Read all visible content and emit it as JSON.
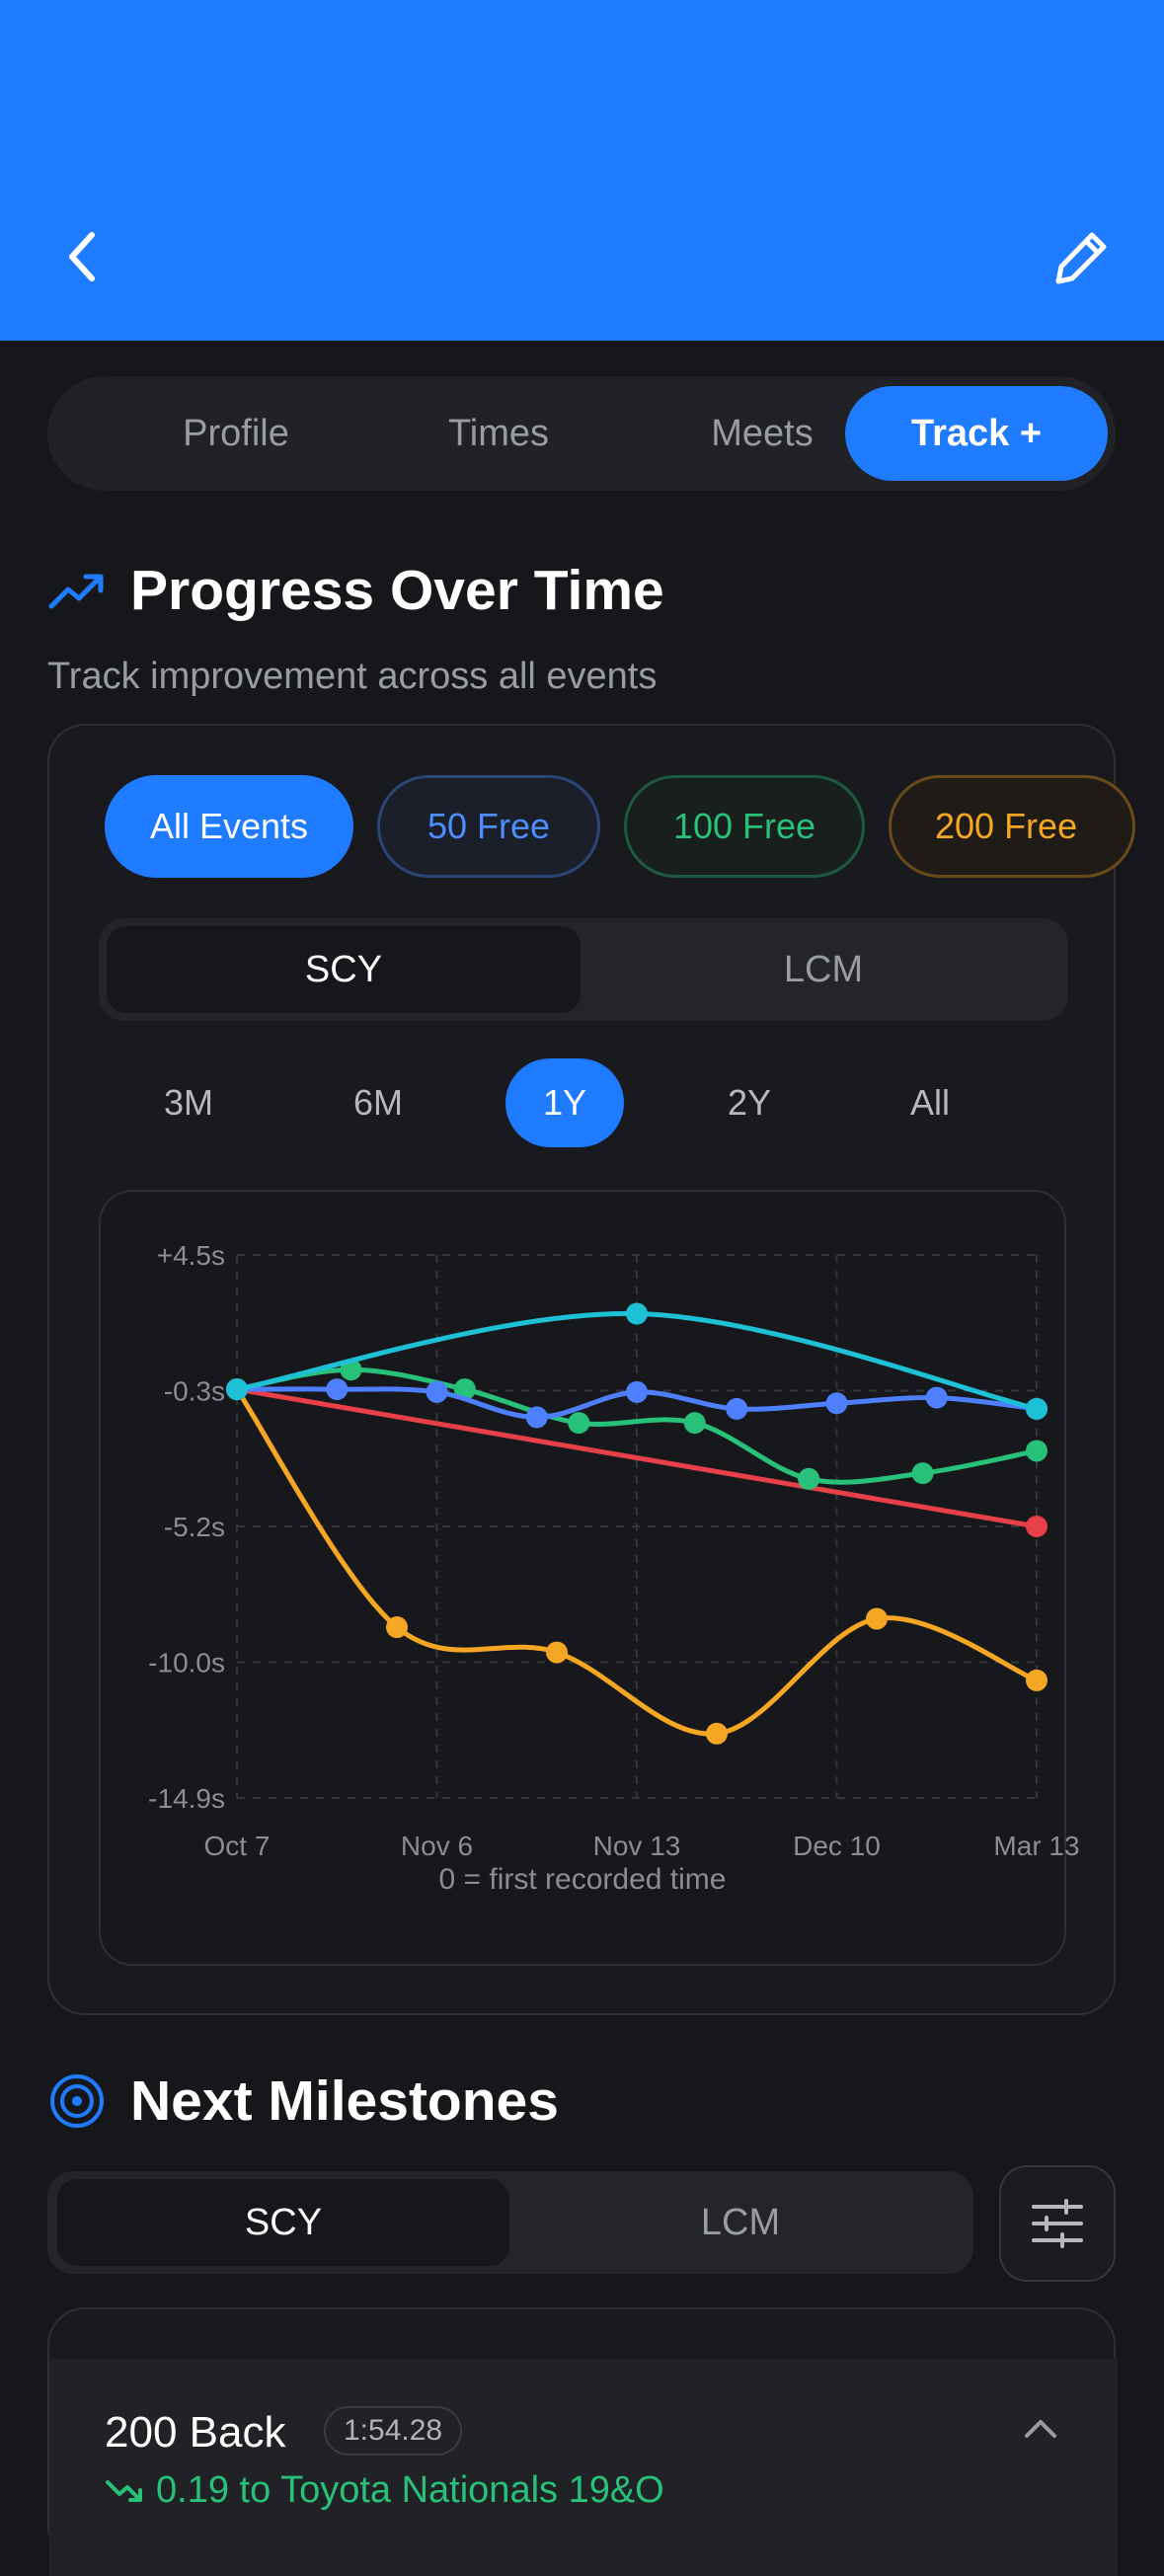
{
  "header": {
    "back_icon": "chevron-left-icon",
    "edit_icon": "pencil-icon",
    "color": "#1f7bff"
  },
  "tabs": [
    {
      "label": "Profile",
      "active": false
    },
    {
      "label": "Times",
      "active": false
    },
    {
      "label": "Meets",
      "active": false
    },
    {
      "label": "Track +",
      "active": true
    }
  ],
  "progress": {
    "title": "Progress Over Time",
    "icon": "trending-up-icon",
    "subtitle": "Track improvement across all events",
    "event_chips": [
      "All Events",
      "50 Free",
      "100 Free",
      "200 Free"
    ],
    "course": {
      "options": [
        "SCY",
        "LCM"
      ],
      "selected": "SCY"
    },
    "ranges": [
      "3M",
      "6M",
      "1Y",
      "2Y",
      "All"
    ],
    "selected_range": "1Y",
    "note": "0 = first recorded time"
  },
  "chart_data": {
    "type": "line",
    "x_ticks": [
      "Oct 7",
      "Nov 6",
      "Nov 13",
      "Dec 10",
      "Mar 13"
    ],
    "y_ticks": [
      "+4.5s",
      "-0.3s",
      "-5.2s",
      "-10.0s",
      "-14.9s"
    ],
    "ylim": [
      -14.9,
      4.5
    ],
    "grid": true,
    "series": [
      {
        "color": "#1ec0d6",
        "x": [
          0,
          2,
          4
        ],
        "y": [
          -0.3,
          2.4,
          -1.0
        ]
      },
      {
        "color": "#27c17a",
        "x": [
          0,
          0.57,
          1.14,
          1.71,
          2.29,
          2.86,
          3.43,
          4
        ],
        "y": [
          -0.3,
          0.4,
          -0.3,
          -1.5,
          -1.5,
          -3.5,
          -3.3,
          -2.5
        ]
      },
      {
        "color": "#4d7fff",
        "x": [
          0,
          0.5,
          1,
          1.5,
          2,
          2.5,
          3,
          3.5,
          4
        ],
        "y": [
          -0.3,
          -0.3,
          -0.4,
          -1.3,
          -0.4,
          -1.0,
          -0.8,
          -0.6,
          -1.0
        ]
      },
      {
        "color": "#e8404a",
        "x": [
          0,
          4
        ],
        "y": [
          -0.3,
          -5.2
        ]
      },
      {
        "color": "#f5a623",
        "x": [
          0,
          0.8,
          1.6,
          2.4,
          3.2,
          4
        ],
        "y": [
          -0.3,
          -8.8,
          -9.7,
          -12.6,
          -8.5,
          -10.7
        ]
      }
    ]
  },
  "milestones": {
    "title": "Next Milestones",
    "icon": "target-icon",
    "course": {
      "options": [
        "SCY",
        "LCM"
      ],
      "selected": "SCY"
    },
    "filter_icon": "sliders-icon",
    "items": [
      {
        "event": "200 Back",
        "time": "1:54.28",
        "gap": "0.19 to Toyota Nationals 19&O",
        "trend_icon": "trending-down-icon",
        "chevron_icon": "chevron-up-icon"
      }
    ]
  }
}
